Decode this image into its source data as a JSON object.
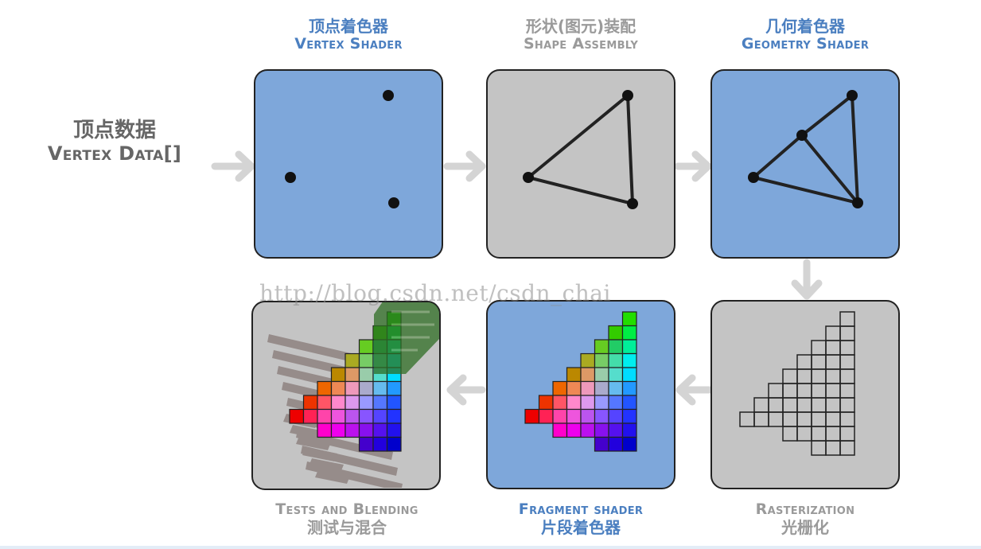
{
  "title": "",
  "input": {
    "zh": "顶点数据",
    "en": "Vertex Data[]"
  },
  "stages": [
    {
      "id": "vertex",
      "zh": "顶点着色器",
      "en": "Vertex Shader",
      "color": "#7ea7da",
      "label_color": "#4b7fc0"
    },
    {
      "id": "shape",
      "zh": "形状(图元)装配",
      "en": "Shape Assembly",
      "color": "#c4c4c4",
      "label_color": "#9a9a9a"
    },
    {
      "id": "geometry",
      "zh": "几何着色器",
      "en": "Geometry Shader",
      "color": "#7ea7da",
      "label_color": "#4b7fc0"
    },
    {
      "id": "raster",
      "zh": "光栅化",
      "en": "Rasterization",
      "color": "#c4c4c4",
      "label_color": "#9a9a9a"
    },
    {
      "id": "fragment",
      "zh": "片段着色器",
      "en": "Fragment shader",
      "color": "#7ea7da",
      "label_color": "#4b7fc0"
    },
    {
      "id": "tests",
      "zh": "测试与混合",
      "en": "Tests and Blending",
      "color": "#c4c4c4",
      "label_color": "#9a9a9a"
    }
  ],
  "watermark": "http://blog.csdn.net/csdn_chai",
  "colors": {
    "arrow": "#d4d4d4",
    "border": "#222222",
    "dot": "#111111"
  }
}
